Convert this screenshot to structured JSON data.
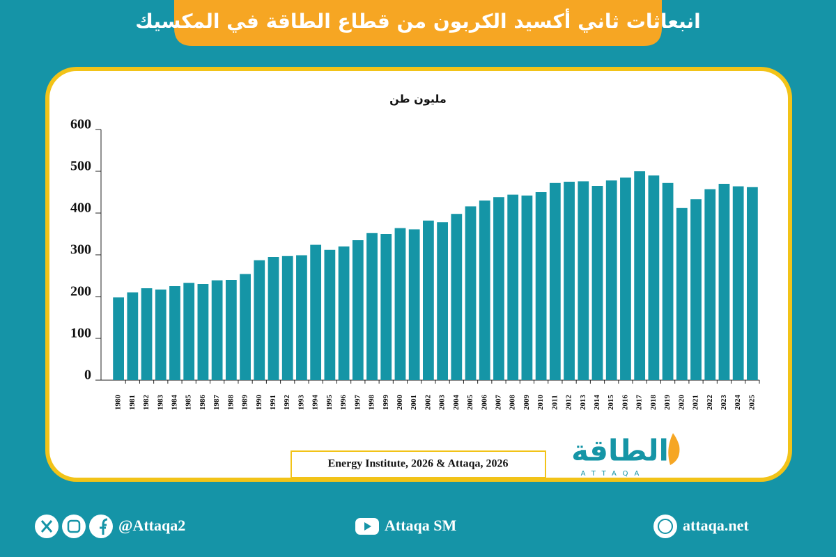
{
  "chart_data": {
    "type": "bar",
    "title": "انبعاثات ثاني أكسيد الكربون من قطاع الطاقة في المكسيك",
    "unit": "مليون طن",
    "source": "Energy Institute, 2026 & Attaqa, 2026",
    "categories": [
      "1980",
      "1981",
      "1982",
      "1983",
      "1984",
      "1985",
      "1986",
      "1987",
      "1988",
      "1989",
      "1990",
      "1991",
      "1992",
      "1993",
      "1994",
      "1995",
      "1996",
      "1997",
      "1998",
      "1999",
      "2000",
      "2001",
      "2002",
      "2003",
      "2004",
      "2005",
      "2006",
      "2007",
      "2008",
      "2009",
      "2010",
      "2011",
      "2012",
      "2013",
      "2014",
      "2015",
      "2016",
      "2017",
      "2018",
      "2019",
      "2020",
      "2021",
      "2022",
      "2023",
      "2024",
      "2025"
    ],
    "values": [
      198,
      210,
      220,
      217,
      225,
      233,
      230,
      239,
      240,
      254,
      287,
      295,
      297,
      299,
      324,
      312,
      320,
      335,
      352,
      350,
      364,
      361,
      382,
      378,
      398,
      416,
      430,
      438,
      444,
      442,
      450,
      472,
      475,
      476,
      465,
      478,
      485,
      500,
      490,
      472,
      412,
      433,
      457,
      470,
      464,
      462
    ],
    "color": "#1595a6",
    "ylim": [
      0,
      600
    ],
    "yticks": [
      0,
      100,
      200,
      300,
      400,
      500,
      600
    ]
  },
  "logo": {
    "name": "الطاقة",
    "latin": "ATTAQA"
  },
  "footer": {
    "social": "@Attaqa2",
    "youtube": "Attaqa SM",
    "website": "attaqa.net"
  }
}
